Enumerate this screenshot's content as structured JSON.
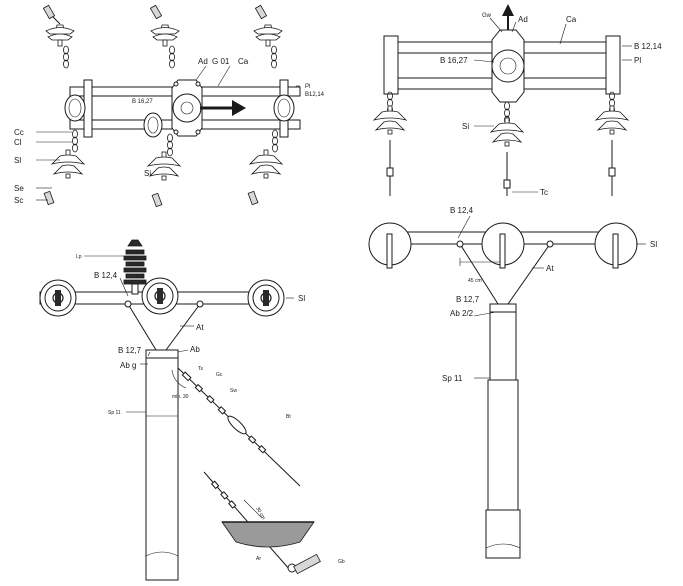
{
  "labels": {
    "tl": {
      "ad": "Ad",
      "g01": "G 01",
      "ca": "Ca",
      "pl": "Pl",
      "b1214": "B12,14",
      "b1627": "B 16,27",
      "cc": "Cc",
      "cl": "Cl",
      "si_left": "Sl",
      "si_mid": "Si",
      "se": "Se",
      "sc": "Sc"
    },
    "tr": {
      "gw": "Gw",
      "ad": "Ad",
      "ca": "Ca",
      "b1214": "B 12,14",
      "pl": "Pl",
      "b1627": "B 16,27",
      "si": "Si",
      "tc": "Tc"
    },
    "bl": {
      "lp": "Lp",
      "b124": "B 12,4",
      "si": "Sl",
      "at": "At",
      "b127": "B 12,7",
      "ab": "Ab",
      "abg": "Ab g",
      "ts": "Ts",
      "gc": "Gc",
      "min30": "min. 30",
      "sw": "Sw",
      "sp11": "Sp 11",
      "bt": "Bt",
      "cm30": "30 cm",
      "ar": "Ar",
      "gb": "Gb"
    },
    "br": {
      "b124": "B 12,4",
      "si": "Sl",
      "at": "At",
      "cm45": "45 cm",
      "b127": "B 12,7",
      "ab22": "Ab 2/2",
      "sp11": "Sp 11"
    }
  }
}
